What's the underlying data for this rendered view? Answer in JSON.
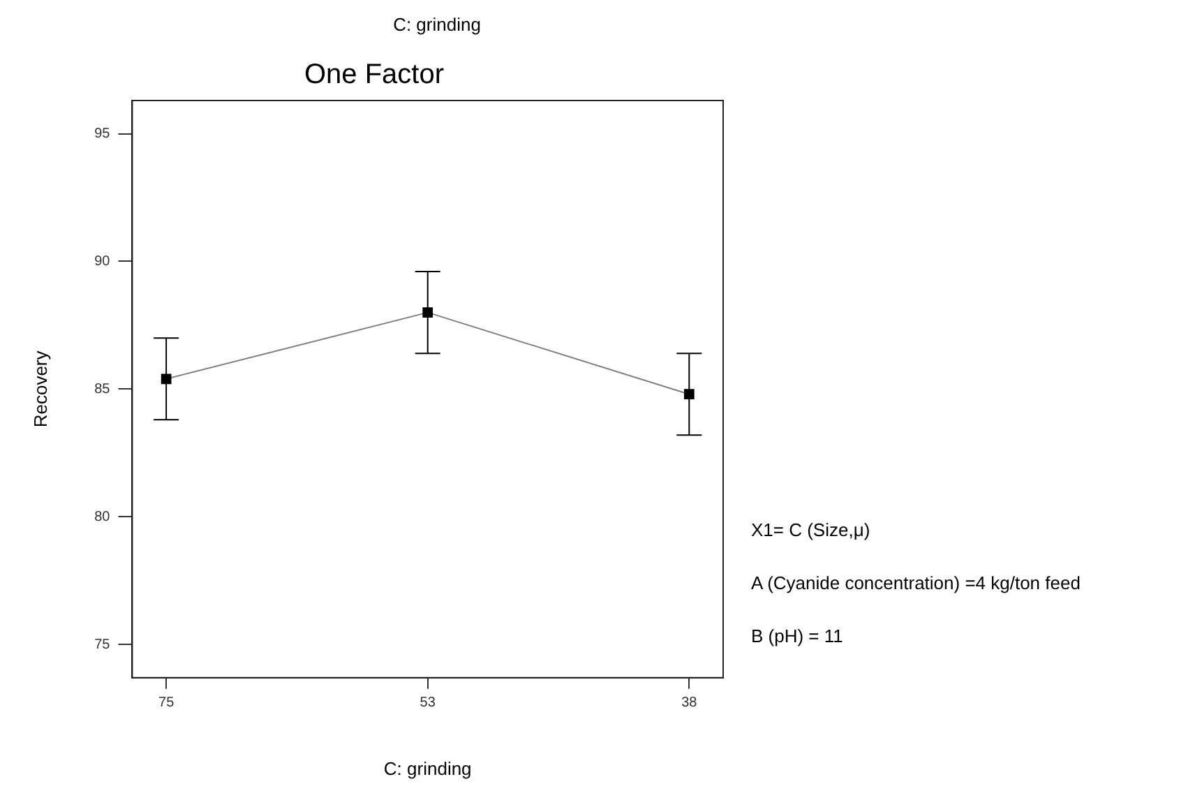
{
  "chart_data": {
    "type": "line",
    "title": "One Factor",
    "xlabel": "C: grinding",
    "ylabel": "Recovery",
    "categories": [
      "75",
      "53",
      "38"
    ],
    "series": [
      {
        "color": "#808080",
        "values": [
          85.4,
          88.0,
          84.8
        ],
        "errors": [
          1.6,
          1.6,
          1.6
        ]
      }
    ],
    "ylim": [
      73.7,
      96.3
    ],
    "yticks": [
      75,
      80,
      85,
      90,
      95
    ],
    "grid": false,
    "legend": false,
    "marker": "square",
    "line_style": "solid",
    "annotations": [
      "C: grinding",
      "X1= C (Size,μ)",
      "A (Cyanide concentration) =4 kg/ton feed",
      "B (pH) = 11"
    ]
  }
}
